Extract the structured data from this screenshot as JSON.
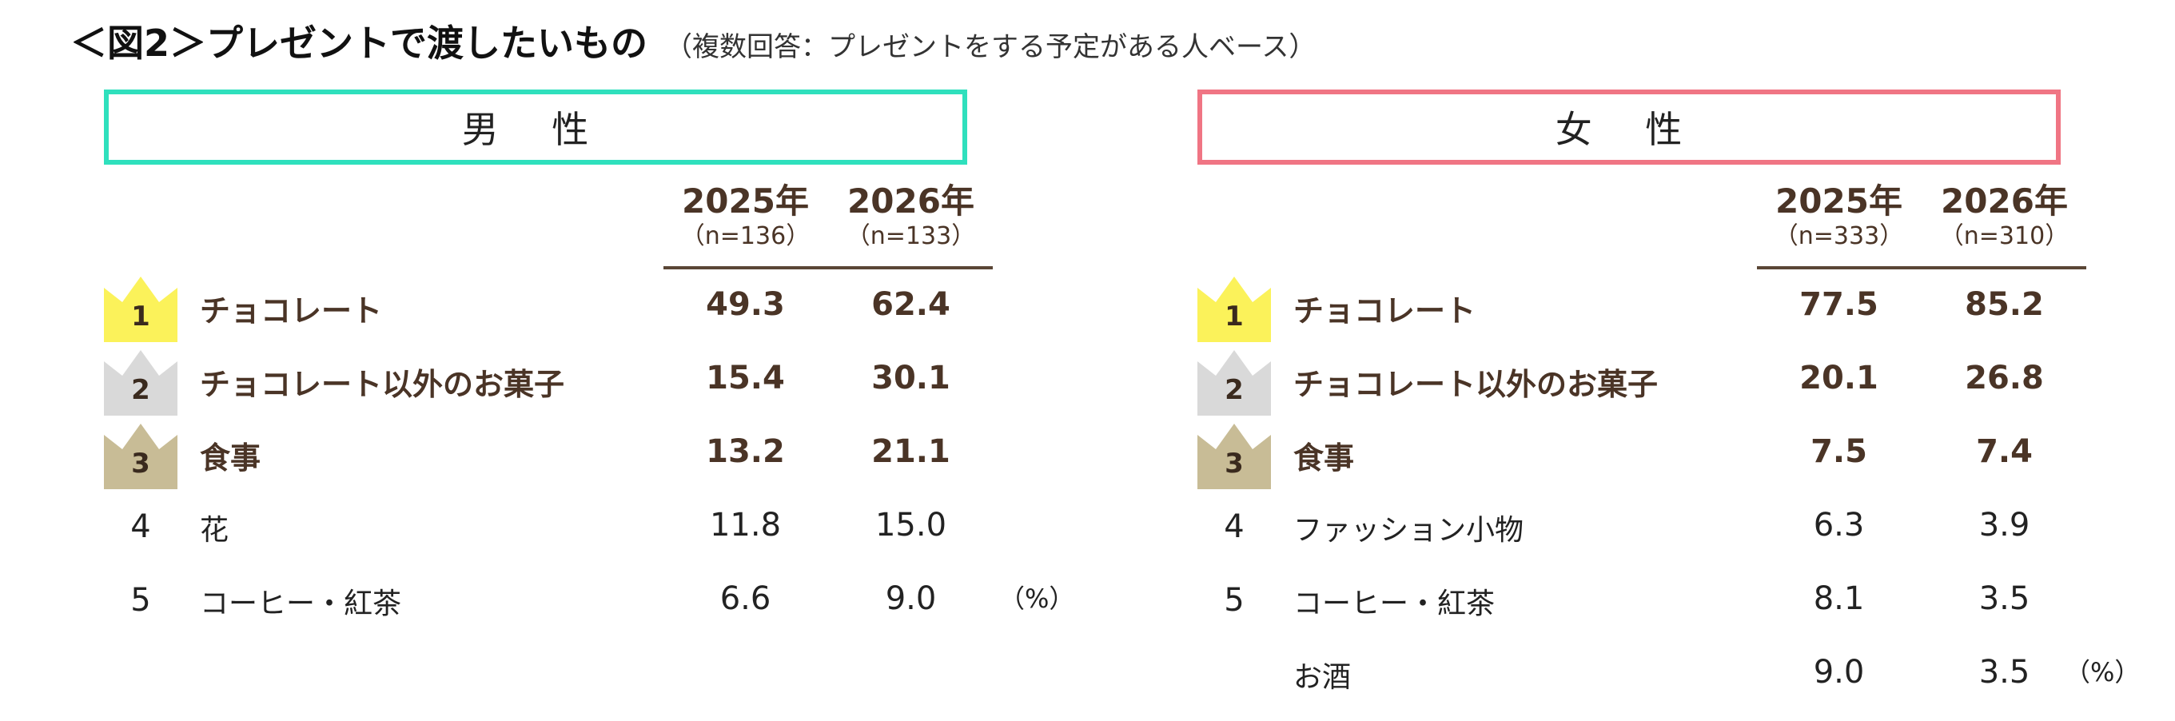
{
  "title": {
    "main": "＜図2＞プレゼントで渡したいもの",
    "sub": "（複数回答：プレゼントをする予定がある人ベース）"
  },
  "colors": {
    "male_border": "#2fe0bd",
    "female_border": "#f07584",
    "gold": "#fbf25a",
    "silver": "#d9d9d9",
    "bronze": "#c8bc96",
    "text_brown": "#4a3426"
  },
  "male": {
    "label": "男 性",
    "years": [
      {
        "year": "2025年",
        "n": "（n=136）"
      },
      {
        "year": "2026年",
        "n": "（n=133）"
      }
    ],
    "unit": "（%）",
    "rows": [
      {
        "rank": "1",
        "item": "チョコレート",
        "v2025": "49.3",
        "v2026": "62.4"
      },
      {
        "rank": "2",
        "item": "チョコレート以外のお菓子",
        "v2025": "15.4",
        "v2026": "30.1"
      },
      {
        "rank": "3",
        "item": "食事",
        "v2025": "13.2",
        "v2026": "21.1"
      },
      {
        "rank": "4",
        "item": "花",
        "v2025": "11.8",
        "v2026": "15.0"
      },
      {
        "rank": "5",
        "item": "コーヒー・紅茶",
        "v2025": "6.6",
        "v2026": "9.0"
      }
    ]
  },
  "female": {
    "label": "女 性",
    "years": [
      {
        "year": "2025年",
        "n": "（n=333）"
      },
      {
        "year": "2026年",
        "n": "（n=310）"
      }
    ],
    "unit": "（%）",
    "rows": [
      {
        "rank": "1",
        "item": "チョコレート",
        "v2025": "77.5",
        "v2026": "85.2"
      },
      {
        "rank": "2",
        "item": "チョコレート以外のお菓子",
        "v2025": "20.1",
        "v2026": "26.8"
      },
      {
        "rank": "3",
        "item": "食事",
        "v2025": "7.5",
        "v2026": "7.4"
      },
      {
        "rank": "4",
        "item": "ファッション小物",
        "v2025": "6.3",
        "v2026": "3.9"
      },
      {
        "rank": "5",
        "item": "コーヒー・紅茶",
        "v2025": "8.1",
        "v2026": "3.5"
      },
      {
        "rank": "",
        "item": "お酒",
        "v2025": "9.0",
        "v2026": "3.5"
      }
    ]
  }
}
